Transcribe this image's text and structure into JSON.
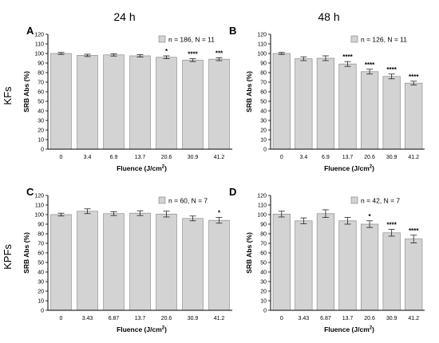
{
  "column_headers": [
    "24 h",
    "48 h"
  ],
  "row_labels": [
    "KFs",
    "KPFs"
  ],
  "colors": {
    "bar_fill": "#d3d3d3",
    "bar_stroke": "#8c8c8c",
    "axis": "#000000"
  },
  "chart_data": [
    {
      "type": "bar",
      "panel": "A",
      "legend": "n = 186, N = 11",
      "ylabel": "SRB Abs (%)",
      "xlabel": "Fluence (J/cm²)",
      "xlabel_parts": [
        "Fluence (J/cm",
        "2",
        ")"
      ],
      "ylim": [
        0,
        120
      ],
      "yticks": [
        0,
        10,
        20,
        30,
        40,
        50,
        60,
        70,
        80,
        90,
        100,
        110,
        120
      ],
      "categories": [
        "0",
        "3.4",
        "6.9",
        "13.7",
        "20.6",
        "30.9",
        "41.2"
      ],
      "values": [
        100,
        98,
        98.5,
        97.5,
        96,
        93,
        94
      ],
      "errors": [
        1,
        1.2,
        1.2,
        1.2,
        1.5,
        1.5,
        1.5
      ],
      "significance": [
        "",
        "",
        "",
        "",
        "*",
        "****",
        "***"
      ],
      "legend_position": "top-right"
    },
    {
      "type": "bar",
      "panel": "B",
      "legend": "n = 126, N = 11",
      "ylabel": "SRB Abs (%)",
      "xlabel": "Fluence (J/cm²)",
      "xlabel_parts": [
        "Fluence (J/cm",
        "2",
        ")"
      ],
      "ylim": [
        0,
        120
      ],
      "yticks": [
        0,
        10,
        20,
        30,
        40,
        50,
        60,
        70,
        80,
        90,
        100,
        110,
        120
      ],
      "categories": [
        "0",
        "3.4",
        "6.9",
        "13.7",
        "20.6",
        "30.9",
        "41.2"
      ],
      "values": [
        100,
        94.5,
        95,
        89,
        81,
        76,
        69
      ],
      "errors": [
        1,
        2,
        2.5,
        2.5,
        2.5,
        2.5,
        2
      ],
      "significance": [
        "",
        "",
        "",
        "****",
        "****",
        "****",
        "****"
      ],
      "legend_position": "top-right"
    },
    {
      "type": "bar",
      "panel": "C",
      "legend": "n = 60, N = 7",
      "ylabel": "SRB Abs (%)",
      "xlabel": "Fluence (J/cm²)",
      "xlabel_parts": [
        "Fluence (J/cm",
        "2",
        ")"
      ],
      "ylim": [
        0,
        120
      ],
      "yticks": [
        0,
        10,
        20,
        30,
        40,
        50,
        60,
        70,
        80,
        90,
        100,
        110,
        120
      ],
      "categories": [
        "0",
        "3.43",
        "6.87",
        "13.7",
        "20.6",
        "30.9",
        "41.2"
      ],
      "values": [
        100,
        103.5,
        101,
        101.5,
        100.5,
        96,
        94
      ],
      "errors": [
        1.5,
        2.5,
        2,
        2.5,
        3,
        2.5,
        3
      ],
      "significance": [
        "",
        "",
        "",
        "",
        "",
        "",
        "*"
      ],
      "legend_position": "top-right"
    },
    {
      "type": "bar",
      "panel": "D",
      "legend": "n = 42, N = 7",
      "ylabel": "SRB Abs (%)",
      "xlabel": "Fluence (J/cm²)",
      "xlabel_parts": [
        "Fluence (J/cm",
        "2",
        ")"
      ],
      "ylim": [
        0,
        120
      ],
      "yticks": [
        0,
        10,
        20,
        30,
        40,
        50,
        60,
        70,
        80,
        90,
        100,
        110,
        120
      ],
      "categories": [
        "0",
        "3.43",
        "6.87",
        "13.7",
        "20.6",
        "30.9",
        "41.2"
      ],
      "values": [
        100.5,
        93.5,
        101,
        93.5,
        90,
        81,
        74.5
      ],
      "errors": [
        3,
        3,
        4,
        3.5,
        3.5,
        3.5,
        4
      ],
      "significance": [
        "",
        "",
        "",
        "",
        "*",
        "****",
        "****"
      ],
      "legend_position": "top-right"
    }
  ]
}
